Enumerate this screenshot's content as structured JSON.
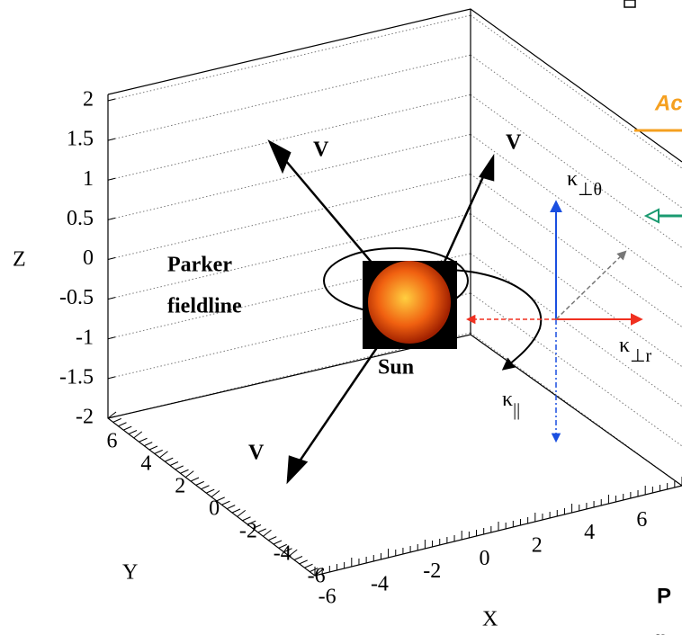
{
  "axes": {
    "z": {
      "label": "Z",
      "ticks": [
        "2",
        "1.5",
        "1",
        "0.5",
        "0",
        "-0.5",
        "-1",
        "-1.5",
        "-2"
      ]
    },
    "y": {
      "label": "Y",
      "ticks": [
        "6",
        "4",
        "2",
        "0",
        "-2",
        "-4",
        "-6"
      ]
    },
    "x": {
      "label": "X",
      "ticks": [
        "-6",
        "-4",
        "-2",
        "0",
        "2",
        "4",
        "6"
      ]
    }
  },
  "labels": {
    "velocity": [
      "V",
      "V",
      "V"
    ],
    "fieldline": [
      "Parker",
      "fieldline"
    ],
    "sun": "Sun",
    "kappa_theta": {
      "symbol": "κ",
      "subscript": "⊥θ"
    },
    "kappa_r": {
      "symbol": "κ",
      "subscript": "⊥r"
    },
    "kappa_par": {
      "symbol": "κ",
      "subscript": "||"
    }
  },
  "clipped": {
    "orange_heading": "Ac",
    "bold_top": "P",
    "bold_bottom": "n"
  }
}
